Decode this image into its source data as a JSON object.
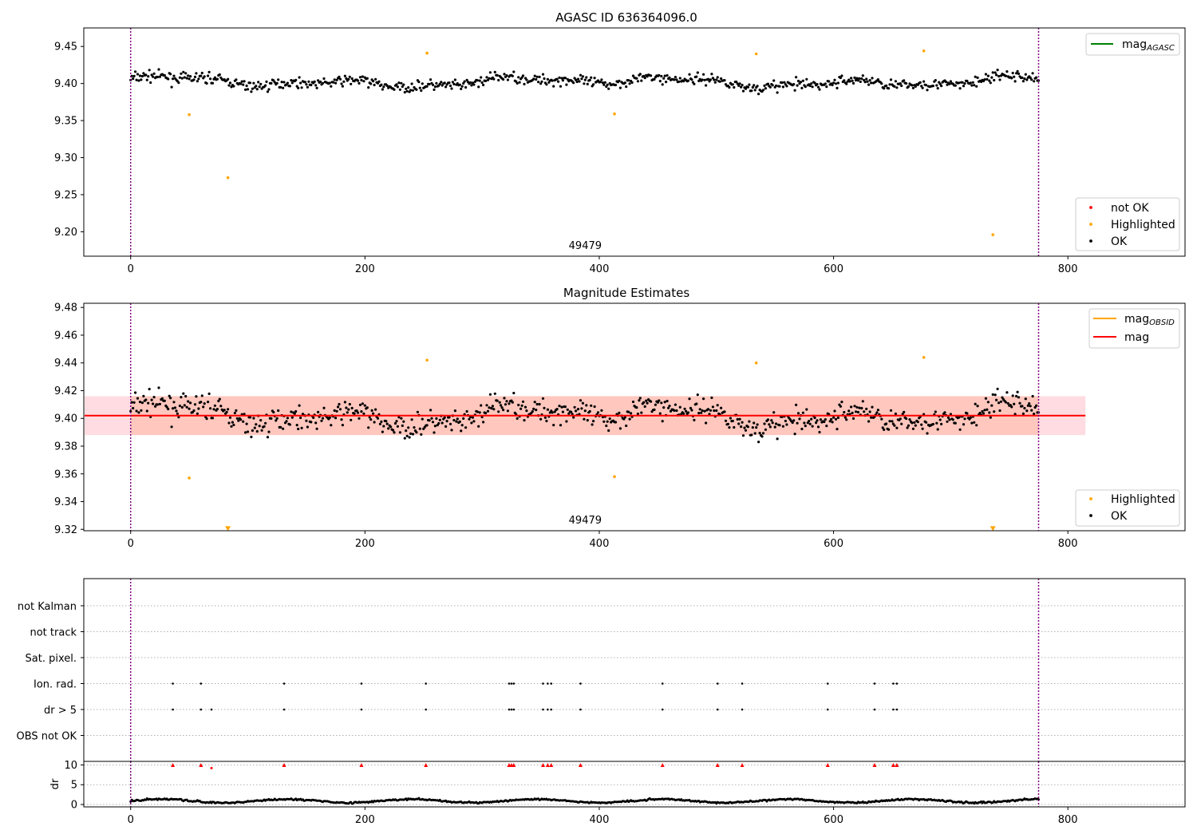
{
  "chart_data": [
    {
      "type": "scatter",
      "title": "AGASC ID 636364096.0",
      "annotation": "49479",
      "xlim": [
        -40,
        900
      ],
      "ylim": [
        9.167,
        9.475
      ],
      "xticks": [
        0,
        200,
        400,
        600,
        800
      ],
      "yticks": [
        9.2,
        9.25,
        9.3,
        9.35,
        9.4,
        9.45
      ],
      "vlines": [
        0,
        775
      ],
      "legend_upper": [
        {
          "name": "mag",
          "sub": "AGASC",
          "color": "#008000"
        }
      ],
      "legend_lower": [
        {
          "name": "not OK",
          "color": "#ff0000"
        },
        {
          "name": "Highlighted",
          "color": "#ffa500"
        },
        {
          "name": "OK",
          "color": "#000000"
        }
      ],
      "series": [
        {
          "name": "OK",
          "color": "#000000",
          "x_range": [
            0,
            775
          ],
          "mean": 9.402,
          "noise": 0.011
        },
        {
          "name": "Highlighted",
          "color": "#ffa500",
          "points": [
            [
              50,
              9.358
            ],
            [
              83,
              9.273
            ],
            [
              253,
              9.441
            ],
            [
              413,
              9.359
            ],
            [
              534,
              9.44
            ],
            [
              677,
              9.444
            ],
            [
              736,
              9.196
            ]
          ]
        }
      ],
      "grid": false,
      "legend_placement": [
        "upper right",
        "lower right"
      ]
    },
    {
      "type": "scatter",
      "title": "Magnitude Estimates",
      "annotation": "49479",
      "xlim": [
        -40,
        900
      ],
      "ylim": [
        9.319,
        9.483
      ],
      "xticks": [
        0,
        200,
        400,
        600,
        800
      ],
      "yticks": [
        9.32,
        9.34,
        9.36,
        9.38,
        9.4,
        9.42,
        9.44,
        9.46,
        9.48
      ],
      "vlines": [
        0,
        775
      ],
      "band": {
        "x": [
          -40,
          815
        ],
        "y": [
          9.388,
          9.416
        ]
      },
      "mag_line": 9.402,
      "legend_upper": [
        {
          "name": "mag",
          "sub": "OBSID",
          "color": "#ffa500"
        },
        {
          "name": "mag",
          "sub": "",
          "color": "#ff0000"
        }
      ],
      "legend_lower": [
        {
          "name": "Highlighted",
          "color": "#ffa500"
        },
        {
          "name": "OK",
          "color": "#000000"
        }
      ],
      "series": [
        {
          "name": "OK",
          "color": "#000000",
          "x_range": [
            0,
            775
          ],
          "mean": 9.402,
          "noise": 0.013
        },
        {
          "name": "Highlighted",
          "color": "#ffa500",
          "points": [
            [
              50,
              9.357
            ],
            [
              253,
              9.442
            ],
            [
              413,
              9.358
            ],
            [
              534,
              9.44
            ],
            [
              677,
              9.444
            ]
          ]
        },
        {
          "name": "Highlighted (below range)",
          "color": "#ffa500",
          "marker": "triangle-down",
          "points": [
            [
              83,
              9.3205
            ],
            [
              736,
              9.3205
            ]
          ]
        }
      ],
      "grid": false,
      "legend_placement": [
        "upper right",
        "lower right"
      ]
    },
    {
      "type": "scatter",
      "title": "",
      "xlim": [
        -40,
        900
      ],
      "xticks": [
        0,
        200,
        400,
        600,
        800
      ],
      "vlines": [
        0,
        775
      ],
      "categories": [
        "not Kalman",
        "not track",
        "Sat. pixel.",
        "Ion. rad.",
        "dr > 5",
        "OBS not OK"
      ],
      "flags": {
        "Ion. rad.": [
          36,
          60,
          131,
          197,
          252,
          323,
          325,
          327,
          352,
          356,
          359,
          384,
          454,
          501,
          522,
          595,
          635,
          651,
          654
        ],
        "dr > 5": [
          36,
          60,
          69,
          131,
          197,
          252,
          323,
          325,
          327,
          352,
          356,
          359,
          384,
          454,
          501,
          522,
          595,
          635,
          651,
          654
        ]
      },
      "grid": true
    },
    {
      "type": "scatter",
      "title": "",
      "ylabel": "dr",
      "xlim": [
        -40,
        900
      ],
      "ylim": [
        -0.6,
        10.9
      ],
      "xticks": [
        0,
        200,
        400,
        600,
        800
      ],
      "yticks": [
        0,
        5,
        10
      ],
      "vlines": [
        0,
        775
      ],
      "series": [
        {
          "name": "dr",
          "color": "#000000",
          "x_range": [
            0,
            775
          ],
          "mean": 0.9,
          "noise": 0.4
        },
        {
          "name": "dr clipped",
          "color": "#ff0000",
          "marker": "triangle-up",
          "y": 10,
          "x": [
            36,
            60,
            131,
            197,
            252,
            323,
            325,
            327,
            352,
            356,
            359,
            384,
            454,
            501,
            522,
            595,
            635,
            651,
            654
          ]
        },
        {
          "name": "dr high",
          "color": "#ff0000",
          "points": [
            [
              69,
              9.2
            ]
          ]
        }
      ],
      "grid": true
    }
  ]
}
